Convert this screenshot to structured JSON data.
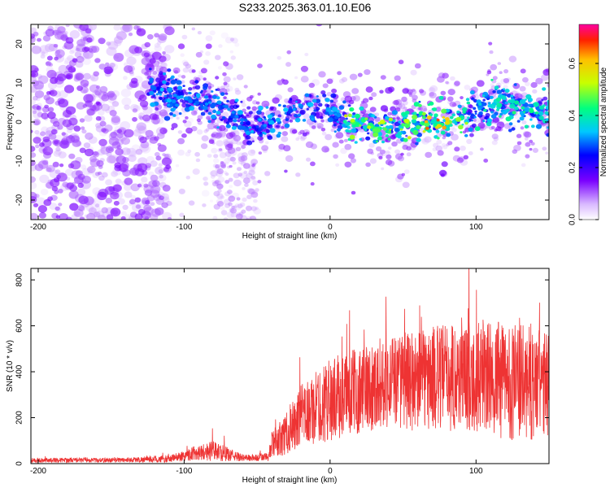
{
  "title": "S233.2025.363.01.10.E06",
  "chart_data": [
    {
      "type": "heatmap",
      "title": "S233.2025.363.01.10.E06",
      "xlabel": "Height of straight line (km)",
      "ylabel": "Frequency (Hz)",
      "xlim": [
        -205,
        150
      ],
      "ylim": [
        -25,
        25
      ],
      "xticks": [
        -200,
        -100,
        0,
        100
      ],
      "yticks": [
        -20,
        -10,
        0,
        10,
        20
      ],
      "colorbar": {
        "label": "Normalized spectral amplitude",
        "range": [
          0.0,
          0.75
        ],
        "ticks": [
          0.0,
          0.2,
          0.4,
          0.6
        ]
      },
      "ridge": {
        "description_points_x": [
          -125,
          -110,
          -90,
          -70,
          -50,
          -30,
          -10,
          0,
          20,
          40,
          60,
          80,
          100,
          120,
          150
        ],
        "description_points_y": [
          9,
          7,
          6,
          3,
          -2,
          2,
          3,
          2,
          -1,
          -1,
          0,
          0,
          3,
          5,
          2
        ],
        "peak_amplitude": 0.75,
        "peak_at_x": 73
      }
    },
    {
      "type": "line",
      "xlabel": "Height of straight line (km)",
      "ylabel": "SNR (10 * v/v)",
      "xlim": [
        -205,
        150
      ],
      "ylim": [
        0,
        850
      ],
      "xticks": [
        -200,
        -100,
        0,
        100
      ],
      "yticks": [
        0,
        200,
        400,
        600,
        800
      ],
      "series": [
        {
          "name": "SNR",
          "color": "#ee3333",
          "envelope_x": [
            -205,
            -150,
            -110,
            -100,
            -90,
            -80,
            -70,
            -60,
            -50,
            -42,
            -40,
            -30,
            -20,
            -10,
            0,
            20,
            40,
            60,
            80,
            100,
            120,
            150
          ],
          "envelope_mean": [
            15,
            15,
            20,
            35,
            50,
            55,
            40,
            25,
            25,
            30,
            80,
            130,
            200,
            240,
            280,
            320,
            360,
            360,
            380,
            380,
            360,
            340
          ],
          "envelope_spread": [
            10,
            10,
            15,
            25,
            35,
            45,
            30,
            15,
            15,
            20,
            60,
            90,
            140,
            160,
            180,
            190,
            200,
            220,
            240,
            240,
            260,
            240
          ]
        }
      ]
    }
  ]
}
